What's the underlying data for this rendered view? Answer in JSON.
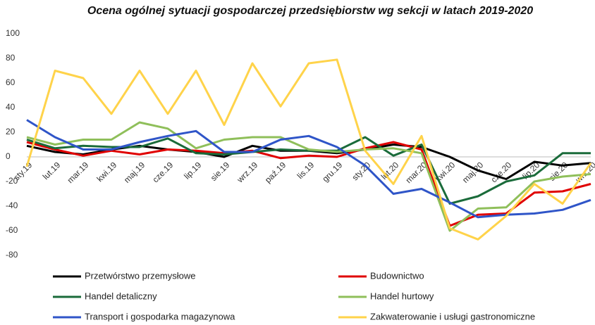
{
  "chart_data": {
    "type": "line",
    "title": "Ocena ogólnej sytuacji gospodarczej przedsiębiorstw wg sekcji w latach 2019-2020",
    "categories": [
      "sty.19",
      "lut.19",
      "mar.19",
      "kwi.19",
      "maj.19",
      "cze.19",
      "lip.19",
      "sie.19",
      "wrz.19",
      "paź.19",
      "lis.19",
      "gru.19",
      "sty.20",
      "lut.20",
      "mar.20",
      "kwi.20",
      "maj.20",
      "cze.20",
      "lip.20",
      "sie.20",
      "wrz.20"
    ],
    "series": [
      {
        "name": "Przetwórstwo przemysłowe",
        "color": "#000000",
        "values": [
          9,
          4,
          2,
          6,
          9,
          6,
          4,
          0,
          9,
          5,
          5,
          3,
          6,
          10,
          8,
          0,
          -11,
          -18,
          -4,
          -7,
          -5
        ]
      },
      {
        "name": "Budownictwo",
        "color": "#e00000",
        "values": [
          12,
          6,
          1,
          5,
          2,
          6,
          5,
          3,
          5,
          -1,
          1,
          0,
          7,
          12,
          6,
          -56,
          -47,
          -46,
          -29,
          -28,
          -22
        ]
      },
      {
        "name": "Handel detaliczny",
        "color": "#1a6b3a",
        "values": [
          14,
          7,
          9,
          8,
          8,
          15,
          3,
          2,
          4,
          6,
          5,
          5,
          16,
          1,
          10,
          -38,
          -32,
          -20,
          -15,
          3,
          3
        ]
      },
      {
        "name": "Handel hurtowy",
        "color": "#8fbf5a",
        "values": [
          16,
          10,
          14,
          14,
          28,
          23,
          7,
          14,
          16,
          16,
          6,
          4,
          6,
          7,
          3,
          -60,
          -42,
          -41,
          -20,
          -16,
          -14
        ]
      },
      {
        "name": "Transport i gospodarka magazynowa",
        "color": "#2f55c8",
        "values": [
          30,
          16,
          6,
          6,
          12,
          17,
          21,
          4,
          4,
          14,
          17,
          8,
          -7,
          -30,
          -26,
          -37,
          -49,
          -47,
          -46,
          -43,
          -35
        ]
      },
      {
        "name": "Zakwaterowanie i usługi gastronomiczne",
        "color": "#ffd34a",
        "values": [
          -8,
          70,
          64,
          35,
          70,
          35,
          70,
          26,
          76,
          41,
          76,
          79,
          5,
          -22,
          17,
          -58,
          -67,
          -48,
          -22,
          -38,
          -5
        ]
      }
    ],
    "ylim": [
      -80,
      100
    ],
    "yticks": [
      -80,
      -60,
      -40,
      -20,
      0,
      20,
      40,
      60,
      80,
      100
    ],
    "grid": false
  }
}
